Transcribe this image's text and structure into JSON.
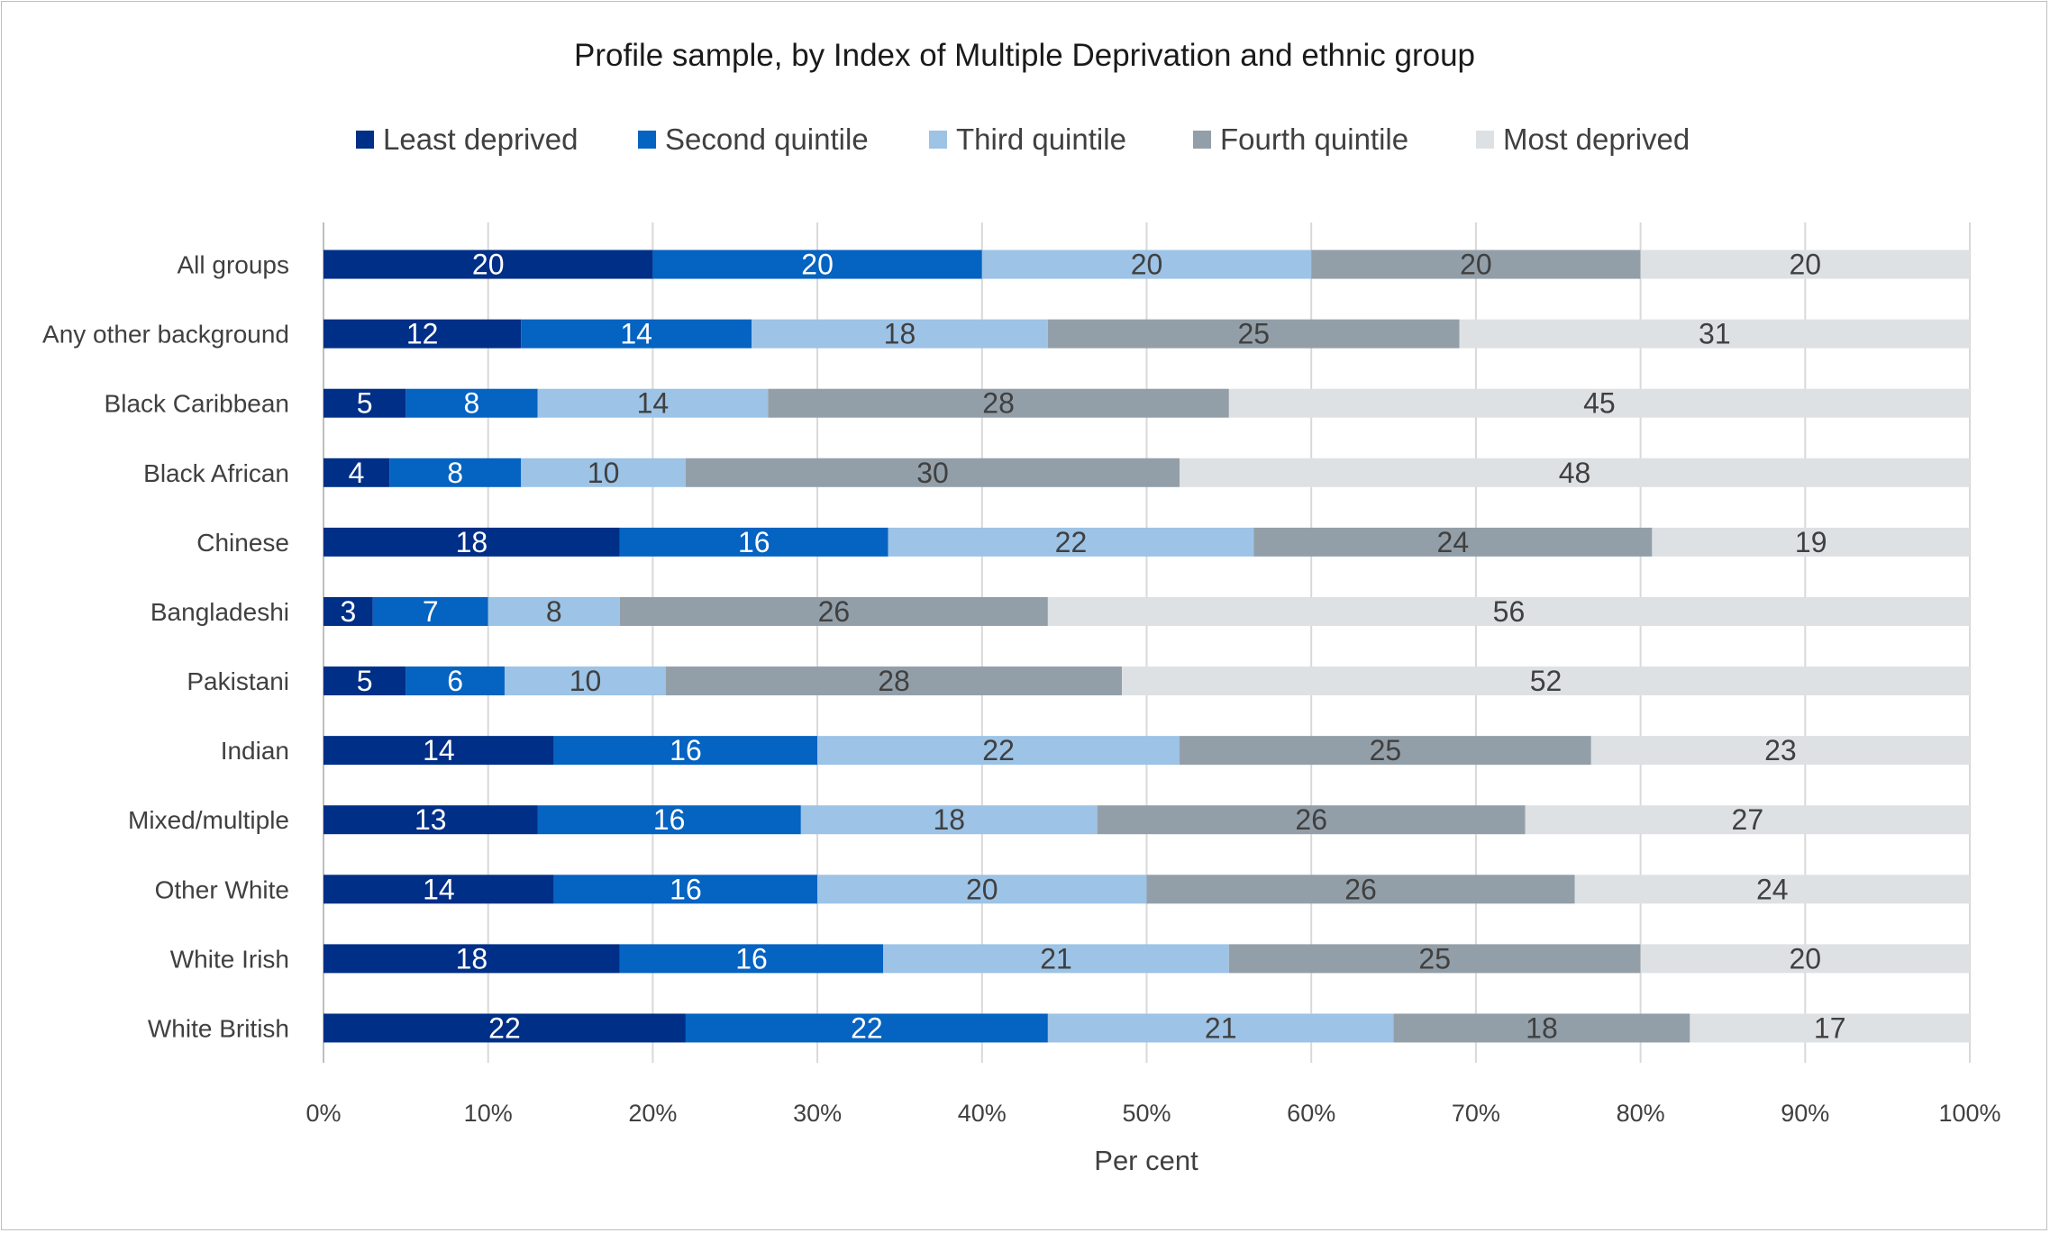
{
  "chart_data": {
    "type": "bar",
    "orientation": "horizontal",
    "stacked": "percent",
    "title": "Profile sample, by Index of Multiple Deprivation and ethnic group",
    "xlabel": "Per cent",
    "ylabel": "",
    "xlim": [
      0,
      100
    ],
    "x_ticks": [
      "0%",
      "10%",
      "20%",
      "30%",
      "40%",
      "50%",
      "60%",
      "70%",
      "80%",
      "90%",
      "100%"
    ],
    "grid": "vertical",
    "legend_position": "top",
    "categories": [
      "All groups",
      "Any other background",
      "Black Caribbean",
      "Black African",
      "Chinese",
      "Bangladeshi",
      "Pakistani",
      "Indian",
      "Mixed/multiple",
      "Other White",
      "White Irish",
      "White British"
    ],
    "series": [
      {
        "name": "Least deprived",
        "color": "#002f87",
        "label_color": "#ffffff",
        "values": [
          20,
          12,
          5,
          4,
          18,
          3,
          5,
          14,
          13,
          14,
          18,
          22
        ],
        "labels": [
          "20",
          "12",
          "5",
          "4",
          "18",
          "3",
          "5",
          "14",
          "13",
          "14",
          "18",
          "22"
        ]
      },
      {
        "name": "Second quintile",
        "color": "#0563c1",
        "label_color": "#ffffff",
        "values": [
          20,
          14,
          8,
          8,
          16.3,
          7,
          6,
          16,
          16,
          16,
          16,
          22
        ],
        "labels": [
          "20",
          "14",
          "8",
          "8",
          "16",
          "7",
          "6",
          "16",
          "16",
          "16",
          "16",
          "22"
        ]
      },
      {
        "name": "Third quintile",
        "color": "#9dc3e6",
        "label_color": "#404040",
        "values": [
          20,
          18,
          14,
          10,
          22.2,
          8,
          9.8,
          22,
          18,
          20,
          21,
          21
        ],
        "labels": [
          "20",
          "18",
          "14",
          "10",
          "22",
          "8",
          "10",
          "22",
          "18",
          "20",
          "21",
          "21"
        ]
      },
      {
        "name": "Fourth quintile",
        "color": "#939fa8",
        "label_color": "#404040",
        "values": [
          20,
          25,
          28,
          30,
          24.2,
          26,
          27.7,
          25,
          26,
          26,
          25,
          18
        ],
        "labels": [
          "20",
          "25",
          "28",
          "30",
          "24",
          "26",
          "28",
          "25",
          "26",
          "26",
          "25",
          "18"
        ]
      },
      {
        "name": "Most deprived",
        "color": "#dee1e4",
        "label_color": "#404040",
        "values": [
          20,
          31,
          45,
          48,
          19.3,
          56,
          51.5,
          23,
          27,
          24,
          20,
          17
        ],
        "labels": [
          "20",
          "31",
          "45",
          "48",
          "19",
          "56",
          "52",
          "23",
          "27",
          "24",
          "20",
          "17"
        ]
      }
    ]
  }
}
